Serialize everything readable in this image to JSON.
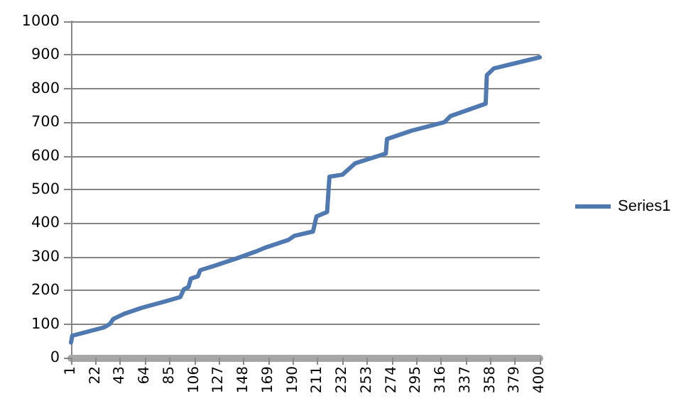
{
  "chart_data": {
    "type": "line",
    "x": [
      1,
      2,
      29,
      34,
      37,
      46,
      61,
      82,
      94,
      97,
      101,
      103,
      109,
      111,
      122,
      142,
      158,
      167,
      186,
      191,
      207,
      210,
      219,
      221,
      232,
      243,
      269,
      270,
      291,
      319,
      324,
      354,
      355,
      361,
      400
    ],
    "series": [
      {
        "name": "Series1",
        "color": "#4f79b0",
        "values": [
          45,
          65,
          90,
          100,
          115,
          130,
          148,
          168,
          180,
          203,
          210,
          235,
          242,
          260,
          272,
          295,
          315,
          328,
          350,
          362,
          375,
          420,
          433,
          538,
          544,
          578,
          607,
          650,
          675,
          700,
          718,
          755,
          840,
          860,
          893
        ]
      }
    ],
    "xlim": [
      1,
      400
    ],
    "xticks": [
      1,
      22,
      43,
      64,
      85,
      106,
      127,
      148,
      169,
      190,
      211,
      232,
      253,
      274,
      295,
      316,
      337,
      358,
      379,
      400
    ],
    "ylim": [
      0,
      1000
    ],
    "yticks": [
      0,
      100,
      200,
      300,
      400,
      500,
      600,
      700,
      800,
      900,
      1000
    ],
    "grid": "y",
    "legend": "right",
    "marker": "none",
    "line_style": "solid"
  }
}
